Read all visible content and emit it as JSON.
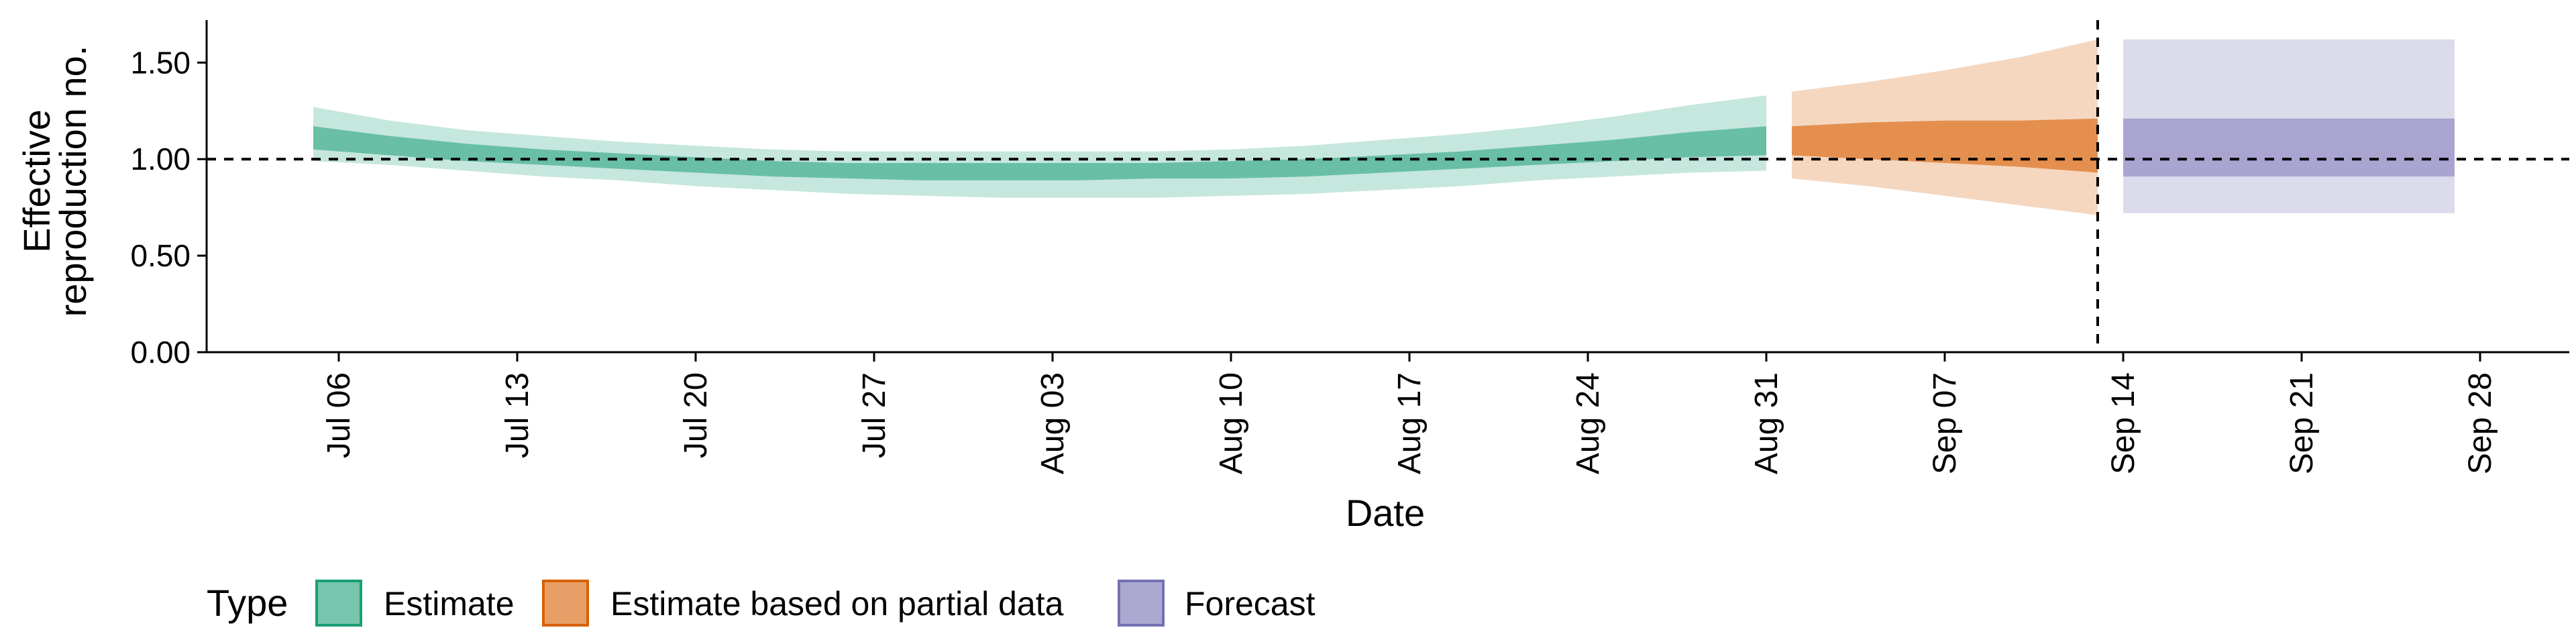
{
  "chart_data": {
    "type": "area",
    "x_axis_type": "date",
    "xlabel": "Date",
    "ylabel_lines": [
      "Effective",
      "reproduction no."
    ],
    "ylim": [
      0,
      1.72
    ],
    "y_ticks": [
      "0.00",
      "0.50",
      "1.00",
      "1.50"
    ],
    "x_ticks": [
      "Jul 06",
      "Jul 13",
      "Jul 20",
      "Jul 27",
      "Aug 03",
      "Aug 10",
      "Aug 17",
      "Aug 24",
      "Aug 31",
      "Sep 07",
      "Sep 14",
      "Sep 21",
      "Sep 28"
    ],
    "xlim": [
      "2020-06-30",
      "2020-10-01"
    ],
    "reference_hline": 1.0,
    "reference_vline_date": "2020-09-13",
    "grid": false,
    "legend_position": "bottom",
    "colors": {
      "estimate": "#1b9e77",
      "partial": "#d95f02",
      "forecast": "#7570b3"
    },
    "legend": {
      "title": "Type",
      "entries": [
        {
          "label": "Estimate",
          "key": "estimate"
        },
        {
          "label": "Estimate based on partial data",
          "key": "partial"
        },
        {
          "label": "Forecast",
          "key": "forecast"
        }
      ]
    },
    "series": [
      {
        "name": "Estimate",
        "key": "estimate",
        "points": [
          {
            "x": "2020-07-05",
            "lo90": 0.99,
            "lo50": 1.05,
            "hi50": 1.17,
            "hi90": 1.27
          },
          {
            "x": "2020-07-08",
            "lo90": 0.97,
            "lo50": 1.02,
            "hi50": 1.12,
            "hi90": 1.2
          },
          {
            "x": "2020-07-11",
            "lo90": 0.94,
            "lo50": 0.99,
            "hi50": 1.08,
            "hi90": 1.15
          },
          {
            "x": "2020-07-14",
            "lo90": 0.91,
            "lo50": 0.97,
            "hi50": 1.05,
            "hi90": 1.12
          },
          {
            "x": "2020-07-17",
            "lo90": 0.89,
            "lo50": 0.95,
            "hi50": 1.03,
            "hi90": 1.09
          },
          {
            "x": "2020-07-20",
            "lo90": 0.86,
            "lo50": 0.93,
            "hi50": 1.01,
            "hi90": 1.07
          },
          {
            "x": "2020-07-23",
            "lo90": 0.84,
            "lo50": 0.91,
            "hi50": 0.99,
            "hi90": 1.05
          },
          {
            "x": "2020-07-26",
            "lo90": 0.82,
            "lo50": 0.9,
            "hi50": 0.98,
            "hi90": 1.04
          },
          {
            "x": "2020-07-29",
            "lo90": 0.81,
            "lo50": 0.89,
            "hi50": 0.98,
            "hi90": 1.04
          },
          {
            "x": "2020-08-01",
            "lo90": 0.8,
            "lo50": 0.89,
            "hi50": 0.98,
            "hi90": 1.04
          },
          {
            "x": "2020-08-04",
            "lo90": 0.8,
            "lo50": 0.89,
            "hi50": 0.98,
            "hi90": 1.04
          },
          {
            "x": "2020-08-07",
            "lo90": 0.8,
            "lo50": 0.9,
            "hi50": 0.98,
            "hi90": 1.04
          },
          {
            "x": "2020-08-10",
            "lo90": 0.81,
            "lo50": 0.9,
            "hi50": 0.99,
            "hi90": 1.05
          },
          {
            "x": "2020-08-13",
            "lo90": 0.82,
            "lo50": 0.91,
            "hi50": 1.0,
            "hi90": 1.07
          },
          {
            "x": "2020-08-16",
            "lo90": 0.84,
            "lo50": 0.93,
            "hi50": 1.02,
            "hi90": 1.1
          },
          {
            "x": "2020-08-19",
            "lo90": 0.86,
            "lo50": 0.95,
            "hi50": 1.04,
            "hi90": 1.13
          },
          {
            "x": "2020-08-22",
            "lo90": 0.89,
            "lo50": 0.97,
            "hi50": 1.07,
            "hi90": 1.17
          },
          {
            "x": "2020-08-25",
            "lo90": 0.91,
            "lo50": 0.99,
            "hi50": 1.1,
            "hi90": 1.22
          },
          {
            "x": "2020-08-28",
            "lo90": 0.93,
            "lo50": 1.01,
            "hi50": 1.14,
            "hi90": 1.28
          },
          {
            "x": "2020-08-31",
            "lo90": 0.94,
            "lo50": 1.02,
            "hi50": 1.17,
            "hi90": 1.33
          }
        ]
      },
      {
        "name": "Estimate based on partial data",
        "key": "partial",
        "points": [
          {
            "x": "2020-09-01",
            "lo90": 0.9,
            "lo50": 1.02,
            "hi50": 1.17,
            "hi90": 1.35
          },
          {
            "x": "2020-09-04",
            "lo90": 0.86,
            "lo50": 1.0,
            "hi50": 1.19,
            "hi90": 1.4
          },
          {
            "x": "2020-09-07",
            "lo90": 0.81,
            "lo50": 0.98,
            "hi50": 1.2,
            "hi90": 1.46
          },
          {
            "x": "2020-09-10",
            "lo90": 0.76,
            "lo50": 0.96,
            "hi50": 1.2,
            "hi90": 1.53
          },
          {
            "x": "2020-09-13",
            "lo90": 0.71,
            "lo50": 0.93,
            "hi50": 1.21,
            "hi90": 1.62
          }
        ]
      },
      {
        "name": "Forecast",
        "key": "forecast",
        "points": [
          {
            "x": "2020-09-14",
            "lo90": 0.72,
            "lo50": 0.91,
            "hi50": 1.21,
            "hi90": 1.62
          },
          {
            "x": "2020-09-27",
            "lo90": 0.72,
            "lo50": 0.91,
            "hi50": 1.21,
            "hi90": 1.62
          }
        ]
      }
    ]
  }
}
